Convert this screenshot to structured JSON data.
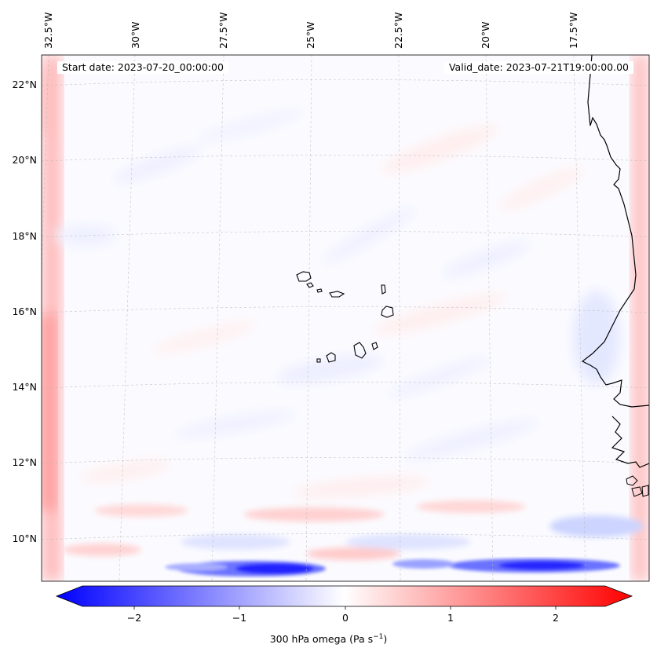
{
  "lon_labels": [
    "32.5°W",
    "30°W",
    "27.5°W",
    "25°W",
    "22.5°W",
    "20°W",
    "17.5°W"
  ],
  "lat_labels": [
    "22°N",
    "20°N",
    "18°N",
    "16°N",
    "14°N",
    "12°N",
    "10°N"
  ],
  "annotations": {
    "start": "Start date: 2023-07-20_00:00:00",
    "valid": "Valid_date: 2023-07-21T19:00:00.00"
  },
  "colorbar": {
    "ticks": [
      "−2",
      "−1",
      "0",
      "1",
      "2"
    ],
    "label_prefix": "300 hPa omega (Pa s",
    "label_exp": "−1",
    "label_suffix": ")",
    "min_color": "#0000ff",
    "mid_color": "#ffffff",
    "max_color": "#ff0000"
  }
}
